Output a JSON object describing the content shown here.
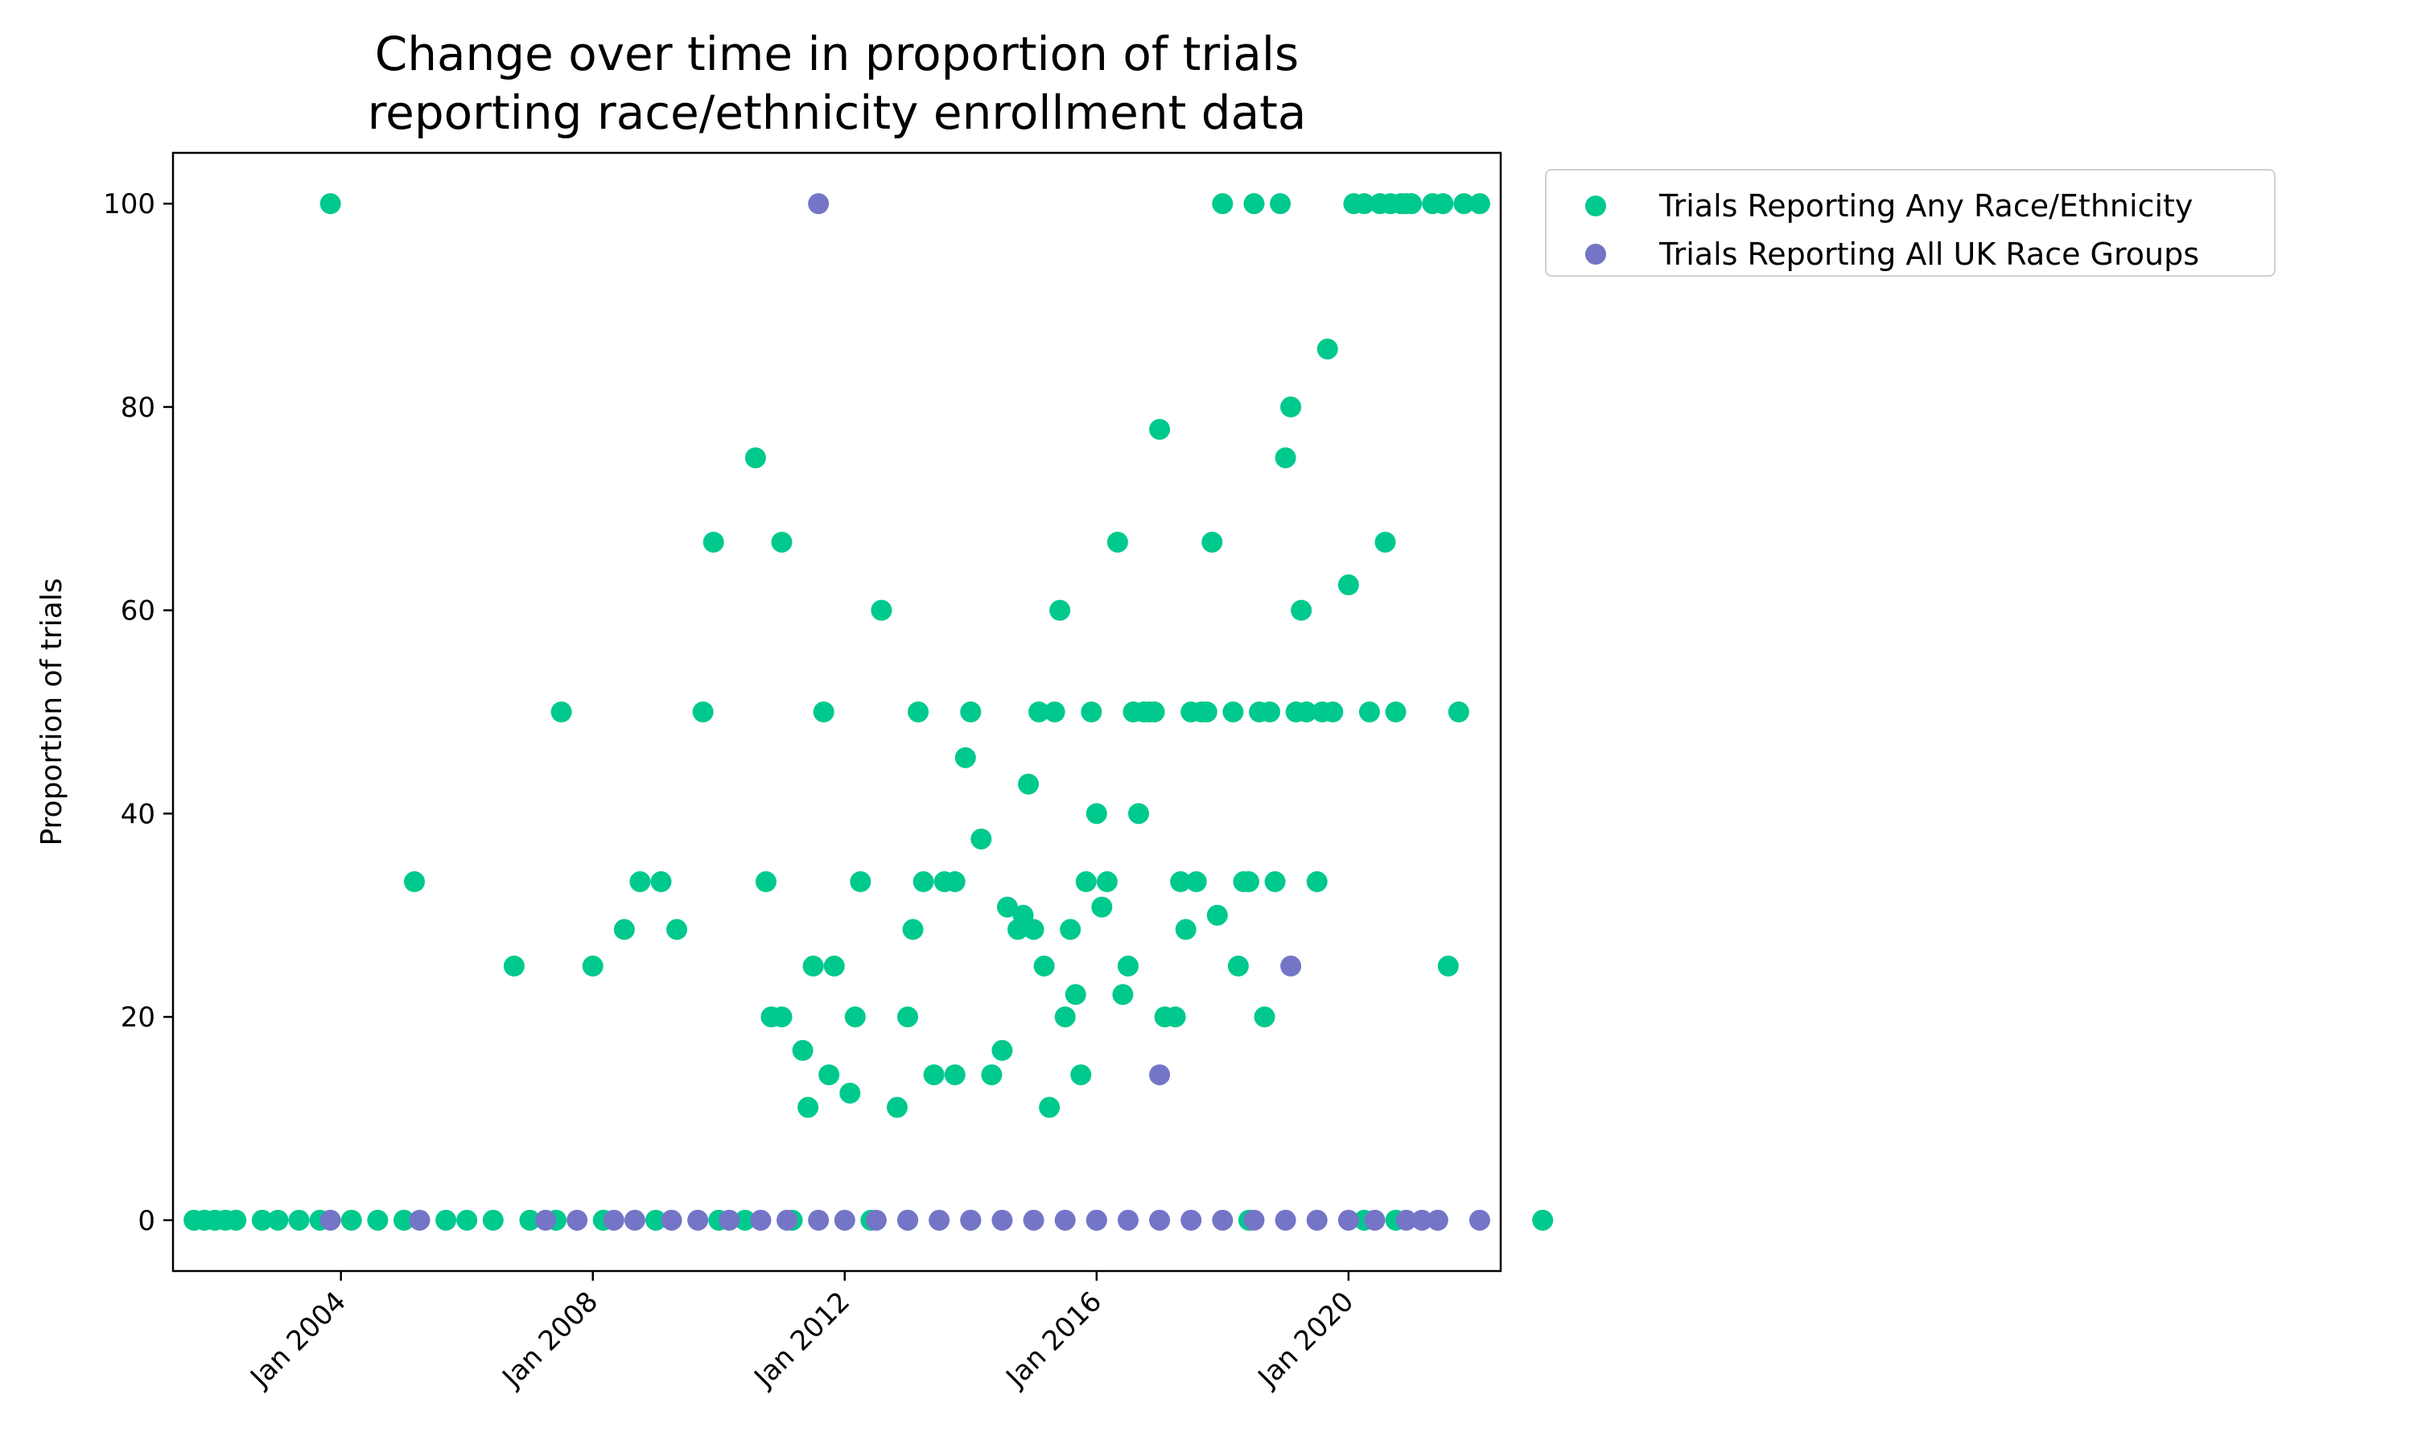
{
  "chart_data": {
    "type": "scatter",
    "title": [
      "Change over time in proportion of trials",
      "reporting race/ethnicity enrollment data"
    ],
    "xlabel": "",
    "ylabel": "Proportion of trials",
    "xlim": [
      "2001-05",
      "2022-06"
    ],
    "ylim": [
      -5,
      105
    ],
    "x_ticks": [
      {
        "date": "2004-01",
        "label": "Jan 2004"
      },
      {
        "date": "2008-01",
        "label": "Jan 2008"
      },
      {
        "date": "2012-01",
        "label": "Jan 2012"
      },
      {
        "date": "2016-01",
        "label": "Jan 2016"
      },
      {
        "date": "2020-01",
        "label": "Jan 2020"
      }
    ],
    "y_ticks": [
      0,
      20,
      40,
      60,
      80,
      100
    ],
    "grid": false,
    "legend_position": "outside-upper-right",
    "series": [
      {
        "name": "Trials Reporting Any Race/Ethnicity",
        "color": "#00c98d",
        "points": [
          [
            "2003-11",
            100
          ],
          [
            "2005-03",
            33.3
          ],
          [
            "2006-10",
            25
          ],
          [
            "2007-07",
            50
          ],
          [
            "2008-01",
            25
          ],
          [
            "2008-07",
            28.6
          ],
          [
            "2008-10",
            33.3
          ],
          [
            "2009-02",
            33.3
          ],
          [
            "2009-05",
            28.6
          ],
          [
            "2009-10",
            50
          ],
          [
            "2009-12",
            66.7
          ],
          [
            "2010-08",
            75
          ],
          [
            "2010-10",
            33.3
          ],
          [
            "2010-11",
            20
          ],
          [
            "2011-01",
            20
          ],
          [
            "2011-01",
            66.7
          ],
          [
            "2011-05",
            16.7
          ],
          [
            "2011-06",
            11.1
          ],
          [
            "2011-07",
            25
          ],
          [
            "2011-09",
            50
          ],
          [
            "2011-10",
            14.3
          ],
          [
            "2011-11",
            25
          ],
          [
            "2012-02",
            12.5
          ],
          [
            "2012-03",
            20
          ],
          [
            "2012-04",
            33.3
          ],
          [
            "2012-08",
            60
          ],
          [
            "2012-11",
            11.1
          ],
          [
            "2013-01",
            20
          ],
          [
            "2013-02",
            28.6
          ],
          [
            "2013-03",
            50
          ],
          [
            "2013-04",
            33.3
          ],
          [
            "2013-06",
            14.3
          ],
          [
            "2013-08",
            33.3
          ],
          [
            "2013-10",
            33.3
          ],
          [
            "2013-10",
            14.3
          ],
          [
            "2013-12",
            45.5
          ],
          [
            "2014-01",
            50
          ],
          [
            "2014-03",
            37.5
          ],
          [
            "2014-05",
            14.3
          ],
          [
            "2014-07",
            16.7
          ],
          [
            "2014-08",
            30.8
          ],
          [
            "2014-10",
            28.6
          ],
          [
            "2014-11",
            30
          ],
          [
            "2014-12",
            42.9
          ],
          [
            "2015-01",
            28.6
          ],
          [
            "2015-02",
            50
          ],
          [
            "2015-03",
            25
          ],
          [
            "2015-04",
            11.1
          ],
          [
            "2015-05",
            50
          ],
          [
            "2015-06",
            60
          ],
          [
            "2015-07",
            20
          ],
          [
            "2015-08",
            28.6
          ],
          [
            "2015-09",
            22.2
          ],
          [
            "2015-10",
            14.3
          ],
          [
            "2015-11",
            33.3
          ],
          [
            "2015-12",
            50
          ],
          [
            "2016-01",
            40
          ],
          [
            "2016-02",
            30.8
          ],
          [
            "2016-03",
            33.3
          ],
          [
            "2016-05",
            66.7
          ],
          [
            "2016-06",
            22.2
          ],
          [
            "2016-07",
            25
          ],
          [
            "2016-08",
            50
          ],
          [
            "2016-09",
            40
          ],
          [
            "2016-10",
            50
          ],
          [
            "2016-11",
            50
          ],
          [
            "2016-12",
            50
          ],
          [
            "2017-01",
            77.8
          ],
          [
            "2017-02",
            20
          ],
          [
            "2017-04",
            20
          ],
          [
            "2017-05",
            33.3
          ],
          [
            "2017-06",
            28.6
          ],
          [
            "2017-07",
            50
          ],
          [
            "2017-08",
            33.3
          ],
          [
            "2017-09",
            50
          ],
          [
            "2017-10",
            50
          ],
          [
            "2017-11",
            66.7
          ],
          [
            "2017-12",
            30
          ],
          [
            "2018-01",
            100
          ],
          [
            "2018-03",
            50
          ],
          [
            "2018-04",
            25
          ],
          [
            "2018-05",
            33.3
          ],
          [
            "2018-06",
            33.3
          ],
          [
            "2018-07",
            100
          ],
          [
            "2018-08",
            50
          ],
          [
            "2018-09",
            20
          ],
          [
            "2018-10",
            50
          ],
          [
            "2018-11",
            33.3
          ],
          [
            "2018-12",
            100
          ],
          [
            "2019-01",
            75
          ],
          [
            "2019-02",
            80
          ],
          [
            "2019-03",
            50
          ],
          [
            "2019-04",
            60
          ],
          [
            "2019-05",
            50
          ],
          [
            "2019-07",
            33.3
          ],
          [
            "2019-08",
            50
          ],
          [
            "2019-09",
            85.7
          ],
          [
            "2019-10",
            50
          ],
          [
            "2020-01",
            62.5
          ],
          [
            "2020-02",
            100
          ],
          [
            "2020-04",
            100
          ],
          [
            "2020-05",
            50
          ],
          [
            "2020-07",
            100
          ],
          [
            "2020-08",
            66.7
          ],
          [
            "2020-09",
            100
          ],
          [
            "2020-10",
            50
          ],
          [
            "2020-11",
            100
          ],
          [
            "2020-12",
            100
          ],
          [
            "2021-01",
            100
          ],
          [
            "2021-05",
            100
          ],
          [
            "2021-07",
            100
          ],
          [
            "2021-08",
            25
          ],
          [
            "2021-10",
            50
          ],
          [
            "2021-11",
            100
          ],
          [
            "2022-02",
            100
          ],
          [
            "2001-09",
            0
          ],
          [
            "2001-11",
            0
          ],
          [
            "2002-01",
            0
          ],
          [
            "2002-03",
            0
          ],
          [
            "2002-05",
            0
          ],
          [
            "2002-10",
            0
          ],
          [
            "2003-01",
            0
          ],
          [
            "2003-05",
            0
          ],
          [
            "2003-09",
            0
          ],
          [
            "2004-03",
            0
          ],
          [
            "2004-08",
            0
          ],
          [
            "2005-01",
            0
          ],
          [
            "2005-09",
            0
          ],
          [
            "2006-01",
            0
          ],
          [
            "2006-06",
            0
          ],
          [
            "2007-01",
            0
          ],
          [
            "2007-06",
            0
          ],
          [
            "2008-03",
            0
          ],
          [
            "2009-01",
            0
          ],
          [
            "2010-01",
            0
          ],
          [
            "2010-06",
            0
          ],
          [
            "2011-03",
            0
          ],
          [
            "2012-06",
            0
          ],
          [
            "2013-01",
            0
          ],
          [
            "2014-01",
            0
          ],
          [
            "2016-01",
            0
          ],
          [
            "2018-06",
            0
          ],
          [
            "2020-04",
            0
          ],
          [
            "2020-10",
            0
          ],
          [
            "2021-06",
            0
          ],
          [
            "2023-02",
            0
          ]
        ]
      },
      {
        "name": "Trials Reporting All UK Race Groups",
        "color": "#7475c7",
        "points": [
          [
            "2011-08",
            100
          ],
          [
            "2019-02",
            25
          ],
          [
            "2017-01",
            14.3
          ],
          [
            "2003-11",
            0
          ],
          [
            "2005-04",
            0
          ],
          [
            "2007-04",
            0
          ],
          [
            "2007-10",
            0
          ],
          [
            "2008-05",
            0
          ],
          [
            "2008-09",
            0
          ],
          [
            "2009-04",
            0
          ],
          [
            "2009-09",
            0
          ],
          [
            "2010-03",
            0
          ],
          [
            "2010-09",
            0
          ],
          [
            "2011-02",
            0
          ],
          [
            "2011-08",
            0
          ],
          [
            "2012-01",
            0
          ],
          [
            "2012-07",
            0
          ],
          [
            "2013-01",
            0
          ],
          [
            "2013-07",
            0
          ],
          [
            "2014-01",
            0
          ],
          [
            "2014-07",
            0
          ],
          [
            "2015-01",
            0
          ],
          [
            "2015-07",
            0
          ],
          [
            "2016-01",
            0
          ],
          [
            "2016-07",
            0
          ],
          [
            "2017-01",
            0
          ],
          [
            "2017-07",
            0
          ],
          [
            "2018-01",
            0
          ],
          [
            "2018-07",
            0
          ],
          [
            "2019-01",
            0
          ],
          [
            "2019-07",
            0
          ],
          [
            "2020-01",
            0
          ],
          [
            "2020-06",
            0
          ],
          [
            "2020-12",
            0
          ],
          [
            "2021-03",
            0
          ],
          [
            "2021-06",
            0
          ],
          [
            "2022-02",
            0
          ]
        ]
      }
    ]
  }
}
